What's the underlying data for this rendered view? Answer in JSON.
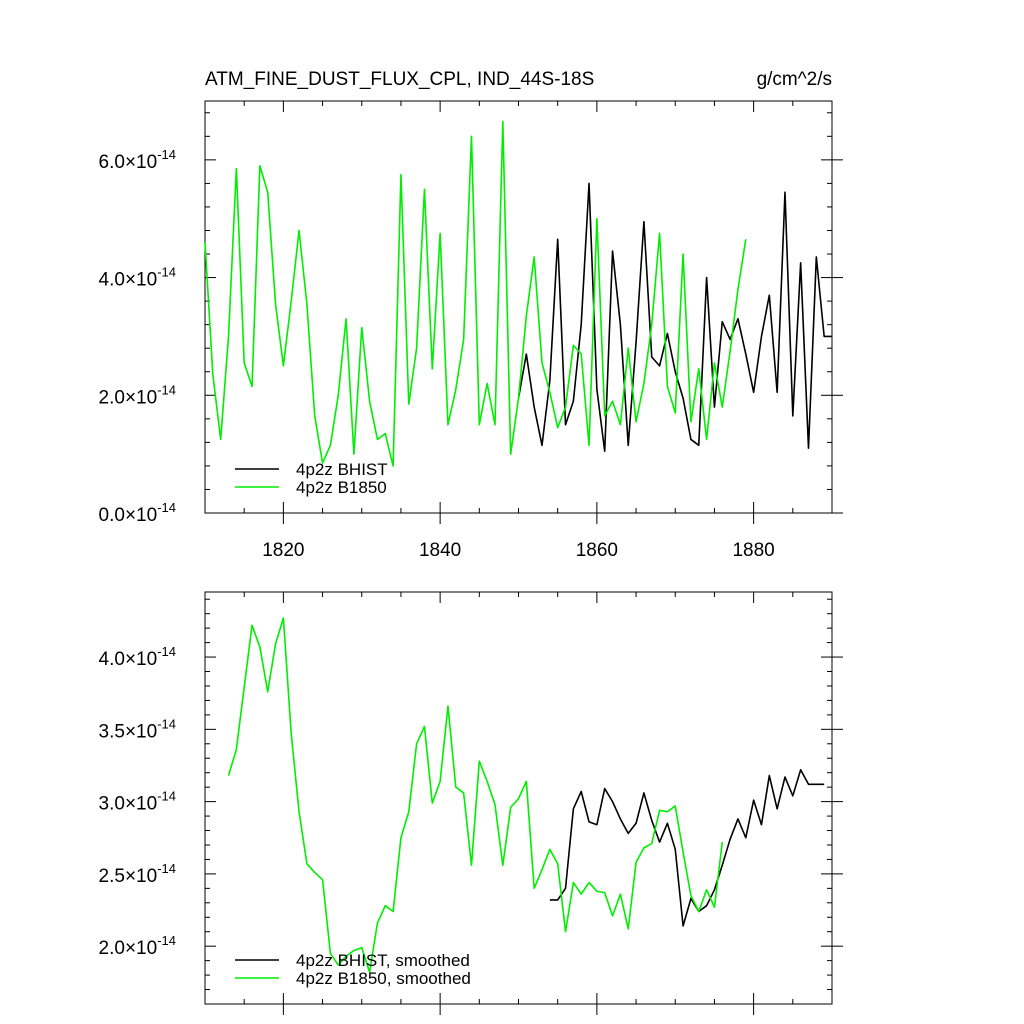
{
  "header": {
    "title": "ATM_FINE_DUST_FLUX_CPL, IND_44S-18S",
    "units": "g/cm^2/s"
  },
  "chart_data": [
    {
      "type": "line",
      "title": "ATM_FINE_DUST_FLUX_CPL, IND_44S-18S",
      "units": "g/cm^2/s",
      "xlim": [
        1810,
        1890
      ],
      "ylim": [
        0.0,
        7.0
      ],
      "y_exponent": -14,
      "x_ticks": [
        1820,
        1840,
        1860,
        1880
      ],
      "y_ticks": [
        0.0,
        2.0,
        4.0,
        6.0
      ],
      "y_tick_labels": [
        "0.0",
        "2.0",
        "4.0",
        "6.0"
      ],
      "legend_position": "bottom-left",
      "series": [
        {
          "name": "4p2z BHIST",
          "color": "#000000",
          "x": [
            1850,
            1851,
            1852,
            1853,
            1854,
            1855,
            1856,
            1857,
            1858,
            1859,
            1860,
            1861,
            1862,
            1863,
            1864,
            1865,
            1866,
            1867,
            1868,
            1869,
            1870,
            1871,
            1872,
            1873,
            1874,
            1875,
            1876,
            1877,
            1878,
            1879,
            1880,
            1881,
            1882,
            1883,
            1884,
            1885,
            1886,
            1887,
            1888,
            1889,
            1890
          ],
          "values": [
            1.95,
            2.7,
            1.8,
            1.15,
            2.25,
            4.65,
            1.5,
            1.9,
            3.2,
            5.6,
            2.1,
            1.05,
            4.45,
            3.2,
            1.15,
            2.9,
            4.95,
            2.65,
            2.5,
            3.05,
            2.4,
            1.95,
            1.25,
            1.15,
            4.0,
            1.8,
            3.25,
            2.95,
            3.3,
            2.7,
            2.05,
            3.0,
            3.7,
            2.05,
            5.45,
            1.65,
            4.25,
            1.1,
            4.35,
            3.0,
            3.0
          ]
        },
        {
          "name": "4p2z B1850",
          "color": "#00ee00",
          "x": [
            1810,
            1811,
            1812,
            1813,
            1814,
            1815,
            1816,
            1817,
            1818,
            1819,
            1820,
            1821,
            1822,
            1823,
            1824,
            1825,
            1826,
            1827,
            1828,
            1829,
            1830,
            1831,
            1832,
            1833,
            1834,
            1835,
            1836,
            1837,
            1838,
            1839,
            1840,
            1841,
            1842,
            1843,
            1844,
            1845,
            1846,
            1847,
            1848,
            1849,
            1850,
            1851,
            1852,
            1853,
            1854,
            1855,
            1856,
            1857,
            1858,
            1859,
            1860,
            1861,
            1862,
            1863,
            1864,
            1865,
            1866,
            1867,
            1868,
            1869,
            1870,
            1871,
            1872,
            1873,
            1874,
            1875,
            1876,
            1877,
            1878,
            1879
          ],
          "values": [
            4.6,
            2.35,
            1.25,
            3.0,
            5.85,
            2.55,
            2.15,
            5.9,
            5.45,
            3.55,
            2.5,
            3.6,
            4.8,
            3.55,
            1.65,
            0.85,
            1.15,
            2.0,
            3.3,
            1.0,
            3.15,
            1.9,
            1.25,
            1.35,
            0.8,
            5.75,
            1.85,
            2.8,
            5.5,
            2.45,
            4.75,
            1.5,
            2.1,
            2.95,
            6.4,
            1.5,
            2.2,
            1.5,
            6.65,
            1.0,
            1.95,
            3.35,
            4.35,
            2.55,
            2.05,
            1.45,
            1.8,
            2.85,
            2.7,
            1.15,
            5.0,
            1.65,
            1.9,
            1.5,
            2.8,
            1.55,
            2.2,
            3.2,
            4.75,
            2.15,
            1.7,
            4.4,
            1.55,
            2.45,
            1.25,
            2.55,
            1.8,
            2.75,
            3.8,
            4.65
          ]
        }
      ]
    },
    {
      "type": "line",
      "xlim": [
        1810,
        1890
      ],
      "ylim": [
        1.6,
        4.45
      ],
      "y_exponent": -14,
      "x_ticks": [
        1820,
        1840,
        1860,
        1880
      ],
      "y_ticks": [
        2.0,
        2.5,
        3.0,
        3.5,
        4.0
      ],
      "y_tick_labels": [
        "2.0",
        "2.5",
        "3.0",
        "3.5",
        "4.0"
      ],
      "legend_position": "bottom-left",
      "series": [
        {
          "name": "4p2z BHIST, smoothed",
          "color": "#000000",
          "x": [
            1854,
            1855,
            1856,
            1857,
            1858,
            1859,
            1860,
            1861,
            1862,
            1863,
            1864,
            1865,
            1866,
            1867,
            1868,
            1869,
            1870,
            1871,
            1872,
            1873,
            1874,
            1875,
            1876,
            1877,
            1878,
            1879,
            1880,
            1881,
            1882,
            1883,
            1884,
            1885,
            1886,
            1887,
            1888,
            1889
          ],
          "values": [
            2.32,
            2.32,
            2.4,
            2.95,
            3.07,
            2.86,
            2.84,
            3.09,
            3.0,
            2.88,
            2.78,
            2.85,
            3.06,
            2.87,
            2.72,
            2.85,
            2.67,
            2.14,
            2.33,
            2.24,
            2.28,
            2.39,
            2.56,
            2.74,
            2.88,
            2.75,
            3.01,
            2.84,
            3.18,
            2.95,
            3.17,
            3.04,
            3.22,
            3.12,
            3.12,
            3.12
          ]
        },
        {
          "name": "4p2z B1850, smoothed",
          "color": "#00ee00",
          "x": [
            1813,
            1814,
            1815,
            1816,
            1817,
            1818,
            1819,
            1820,
            1821,
            1822,
            1823,
            1824,
            1825,
            1826,
            1827,
            1828,
            1829,
            1830,
            1831,
            1832,
            1833,
            1834,
            1835,
            1836,
            1837,
            1838,
            1839,
            1840,
            1841,
            1842,
            1843,
            1844,
            1845,
            1846,
            1847,
            1848,
            1849,
            1850,
            1851,
            1852,
            1853,
            1854,
            1855,
            1856,
            1857,
            1858,
            1859,
            1860,
            1861,
            1862,
            1863,
            1864,
            1865,
            1866,
            1867,
            1868,
            1869,
            1870,
            1871,
            1872,
            1873,
            1874,
            1875,
            1876
          ],
          "values": [
            3.18,
            3.36,
            3.79,
            4.22,
            4.07,
            3.76,
            4.09,
            4.27,
            3.47,
            2.93,
            2.57,
            2.51,
            2.46,
            1.95,
            1.87,
            1.93,
            1.97,
            1.99,
            1.82,
            2.16,
            2.28,
            2.24,
            2.75,
            2.93,
            3.4,
            3.52,
            2.99,
            3.14,
            3.66,
            3.1,
            3.06,
            2.56,
            3.28,
            3.14,
            2.98,
            2.56,
            2.96,
            3.02,
            3.14,
            2.4,
            2.53,
            2.67,
            2.57,
            2.1,
            2.44,
            2.36,
            2.44,
            2.38,
            2.37,
            2.21,
            2.36,
            2.12,
            2.58,
            2.68,
            2.71,
            2.94,
            2.93,
            2.97,
            2.65,
            2.35,
            2.24,
            2.39,
            2.27,
            2.72
          ]
        }
      ]
    }
  ]
}
